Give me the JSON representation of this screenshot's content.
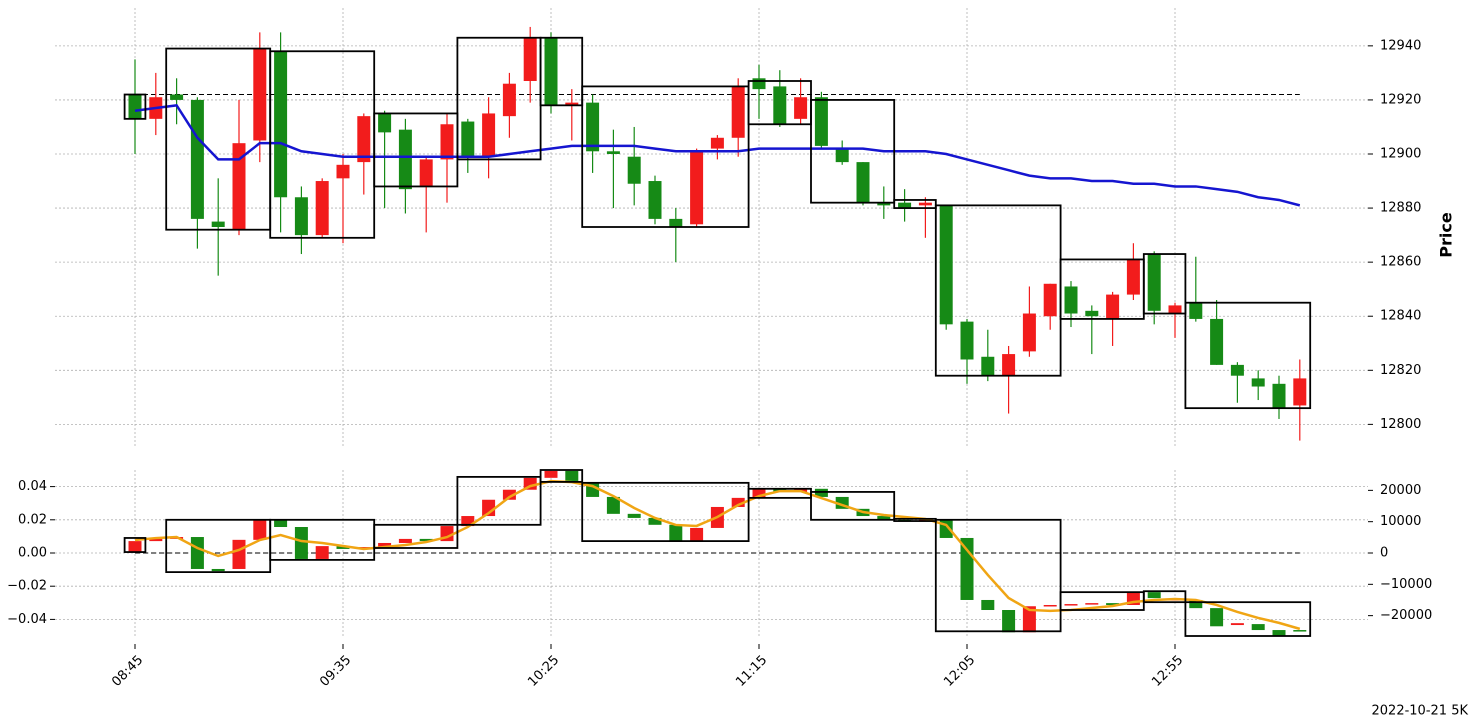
{
  "chart_data": [
    {
      "type": "candlestick",
      "ylabel": "Price",
      "ylim": [
        12792,
        12954
      ],
      "yticks": [
        12800,
        12820,
        12840,
        12860,
        12880,
        12900,
        12920,
        12940
      ],
      "grid": true,
      "up_color": "#f21c1c",
      "down_color": "#168a16",
      "open": [
        12922,
        12913,
        12922,
        12920,
        12875,
        12872,
        12905,
        12938,
        12884,
        12870,
        12891,
        12897,
        12915,
        12909,
        12888,
        12898,
        12912,
        12899,
        12914,
        12927,
        12943,
        12918,
        12919,
        12901,
        12899,
        12890,
        12876,
        12874,
        12902,
        12906,
        12928,
        12925,
        12913,
        12921,
        12902,
        12897,
        12882,
        12882,
        12881,
        12881,
        12838,
        12825,
        12818,
        12827,
        12840,
        12851,
        12842,
        12839,
        12848,
        12863,
        12841,
        12845,
        12839,
        12822,
        12817,
        12815,
        12807
      ],
      "high": [
        12935,
        12930,
        12928,
        12921,
        12891,
        12920,
        12945,
        12945,
        12888,
        12891,
        12900,
        12915,
        12916,
        12913,
        12899,
        12915,
        12913,
        12921,
        12930,
        12947,
        12945,
        12924,
        12922,
        12909,
        12910,
        12892,
        12880,
        12902,
        12907,
        12928,
        12933,
        12931,
        12928,
        12923,
        12905,
        12897,
        12888,
        12887,
        12884,
        12881,
        12839,
        12835,
        12829,
        12851,
        12852,
        12853,
        12844,
        12849,
        12867,
        12864,
        12845,
        12862,
        12846,
        12823,
        12820,
        12818,
        12824
      ],
      "low": [
        12900,
        12907,
        12911,
        12865,
        12855,
        12870,
        12897,
        12871,
        12863,
        12869,
        12867,
        12885,
        12880,
        12878,
        12871,
        12882,
        12893,
        12891,
        12906,
        12919,
        12915,
        12905,
        12893,
        12880,
        12881,
        12874,
        12860,
        12873,
        12898,
        12899,
        12913,
        12910,
        12911,
        12902,
        12896,
        12881,
        12876,
        12875,
        12869,
        12835,
        12815,
        12816,
        12804,
        12825,
        12835,
        12836,
        12826,
        12829,
        12846,
        12837,
        12832,
        12838,
        12822,
        12808,
        12809,
        12802,
        12794
      ],
      "close": [
        12913,
        12921,
        12920,
        12876,
        12873,
        12904,
        12939,
        12884,
        12870,
        12890,
        12896,
        12914,
        12908,
        12887,
        12898,
        12911,
        12899,
        12915,
        12926,
        12943,
        12918,
        12919,
        12901,
        12900,
        12889,
        12876,
        12873,
        12901,
        12906,
        12925,
        12924,
        12911,
        12921,
        12903,
        12897,
        12882,
        12881,
        12880,
        12882,
        12837,
        12824,
        12818,
        12826,
        12841,
        12852,
        12841,
        12840,
        12848,
        12861,
        12842,
        12844,
        12839,
        12822,
        12818,
        12814,
        12806,
        12817
      ],
      "line": {
        "color": "#1515d0",
        "values": [
          12916,
          12917,
          12918,
          12906,
          12898,
          12898,
          12904,
          12904,
          12901,
          12900,
          12899,
          12899,
          12899,
          12899,
          12899,
          12899,
          12899,
          12899,
          12900,
          12901,
          12902,
          12903,
          12903,
          12903,
          12903,
          12902,
          12901,
          12901,
          12901,
          12901,
          12902,
          12902,
          12902,
          12902,
          12902,
          12902,
          12901,
          12901,
          12901,
          12900,
          12898,
          12896,
          12894,
          12892,
          12891,
          12891,
          12890,
          12890,
          12889,
          12889,
          12888,
          12888,
          12887,
          12886,
          12884,
          12883,
          12881
        ]
      },
      "hline": 12922,
      "boxes": [
        {
          "start": 0,
          "end": 0,
          "low": 12913,
          "high": 12922
        },
        {
          "start": 2,
          "end": 6,
          "low": 12872,
          "high": 12939
        },
        {
          "start": 7,
          "end": 11,
          "low": 12869,
          "high": 12938
        },
        {
          "start": 12,
          "end": 15,
          "low": 12888,
          "high": 12915
        },
        {
          "start": 16,
          "end": 19,
          "low": 12898,
          "high": 12943
        },
        {
          "start": 20,
          "end": 21,
          "low": 12918,
          "high": 12943
        },
        {
          "start": 22,
          "end": 29,
          "low": 12873,
          "high": 12925
        },
        {
          "start": 30,
          "end": 32,
          "low": 12911,
          "high": 12927
        },
        {
          "start": 33,
          "end": 36,
          "low": 12882,
          "high": 12920
        },
        {
          "start": 37,
          "end": 38,
          "low": 12880,
          "high": 12883
        },
        {
          "start": 39,
          "end": 44,
          "low": 12818,
          "high": 12881
        },
        {
          "start": 45,
          "end": 48,
          "low": 12839,
          "high": 12861
        },
        {
          "start": 49,
          "end": 50,
          "low": 12841,
          "high": 12863
        },
        {
          "start": 51,
          "end": 56,
          "low": 12806,
          "high": 12845
        }
      ]
    },
    {
      "type": "candlestick",
      "footer": "2022-10-21 5K",
      "categories": [
        "08:45",
        null,
        null,
        null,
        null,
        null,
        null,
        null,
        null,
        null,
        "09:35",
        null,
        null,
        null,
        null,
        null,
        null,
        null,
        null,
        null,
        "10:25",
        null,
        null,
        null,
        null,
        null,
        null,
        null,
        null,
        null,
        "11:15",
        null,
        null,
        null,
        null,
        null,
        null,
        null,
        null,
        null,
        "12:05",
        null,
        null,
        null,
        null,
        null,
        null,
        null,
        null,
        null,
        "12:55",
        null,
        null,
        null,
        null,
        null,
        null
      ],
      "ylim": [
        -0.05,
        0.05
      ],
      "yticks": [
        0.04,
        0.02,
        {
          "value": 0,
          "label": "0.00"
        },
        {
          "value": -0.02,
          "label": "−0.02"
        },
        {
          "value": -0.04,
          "label": "−0.04"
        }
      ],
      "y2lim": [
        -26500,
        26500
      ],
      "y2ticks": [
        20000,
        10000,
        0,
        {
          "value": -10000,
          "label": "−10000"
        },
        {
          "value": -20000,
          "label": "−20000"
        }
      ],
      "grid": true,
      "up_color": "#f21c1c",
      "down_color": "#168a16",
      "bodies": {
        "axis": "y2",
        "open": [
          300,
          3800,
          4500,
          5100,
          -5100,
          -5100,
          4200,
          10600,
          8300,
          -1900,
          2200,
          1300,
          1900,
          3200,
          4500,
          3800,
          8600,
          11800,
          17000,
          20200,
          24000,
          26200,
          22400,
          17900,
          12500,
          11200,
          9000,
          3800,
          8000,
          14700,
          17600,
          20500,
          19500,
          20500,
          17900,
          14100,
          11800,
          10600,
          10200,
          10600,
          4800,
          -15000,
          -18200,
          -25300,
          -17000,
          -16600,
          -16300,
          -16000,
          -16600,
          -12500,
          -15000,
          -15000,
          -17600,
          -23000,
          -22700,
          -24600,
          -24600
        ],
        "close": [
          3800,
          4500,
          5100,
          -5100,
          -5800,
          4200,
          10600,
          8300,
          -1900,
          2200,
          1300,
          1900,
          3200,
          4500,
          3800,
          8600,
          11800,
          17000,
          20200,
          24000,
          26200,
          23000,
          17900,
          12500,
          11200,
          9000,
          3800,
          8000,
          14700,
          17600,
          20500,
          19500,
          20500,
          17900,
          14100,
          11800,
          10600,
          10200,
          10600,
          4800,
          -15000,
          -18200,
          -25300,
          -17000,
          -16600,
          -16300,
          -16000,
          -16600,
          -12500,
          -14400,
          -14700,
          -17600,
          -23400,
          -22400,
          -24600,
          -26500,
          -25000
        ]
      },
      "line": {
        "color": "#f0a514",
        "values": [
          0.0078,
          0.009,
          0.0096,
          0.003,
          -0.0018,
          0.0018,
          0.0078,
          0.0108,
          0.0072,
          0.006,
          0.0042,
          0.0024,
          0.0036,
          0.0048,
          0.0066,
          0.0096,
          0.0157,
          0.024,
          0.0337,
          0.0403,
          0.0433,
          0.0427,
          0.0403,
          0.0343,
          0.0271,
          0.0211,
          0.0169,
          0.0163,
          0.0217,
          0.0289,
          0.0343,
          0.0373,
          0.0373,
          0.0331,
          0.0289,
          0.0247,
          0.0229,
          0.0217,
          0.0205,
          0.0169,
          0.0018,
          -0.0132,
          -0.0271,
          -0.0343,
          -0.0349,
          -0.0343,
          -0.0331,
          -0.0319,
          -0.0295,
          -0.0283,
          -0.0277,
          -0.0283,
          -0.0313,
          -0.0355,
          -0.0391,
          -0.0421,
          -0.0457
        ]
      },
      "hline": 0,
      "boxes": [
        {
          "start": 0,
          "end": 0,
          "low": 300,
          "high": 4800
        },
        {
          "start": 2,
          "end": 6,
          "low": -6100,
          "high": 10600
        },
        {
          "start": 7,
          "end": 11,
          "low": -2200,
          "high": 10600
        },
        {
          "start": 12,
          "end": 15,
          "low": 1600,
          "high": 9000
        },
        {
          "start": 16,
          "end": 19,
          "low": 9000,
          "high": 24300
        },
        {
          "start": 20,
          "end": 21,
          "low": 22700,
          "high": 26500
        },
        {
          "start": 22,
          "end": 29,
          "low": 3800,
          "high": 22400
        },
        {
          "start": 30,
          "end": 32,
          "low": 17600,
          "high": 20500
        },
        {
          "start": 33,
          "end": 36,
          "low": 10600,
          "high": 19500
        },
        {
          "start": 37,
          "end": 38,
          "low": 10200,
          "high": 10900
        },
        {
          "start": 39,
          "end": 44,
          "low": -25000,
          "high": 10600
        },
        {
          "start": 45,
          "end": 48,
          "low": -18200,
          "high": -12500
        },
        {
          "start": 49,
          "end": 50,
          "low": -15700,
          "high": -12200
        },
        {
          "start": 51,
          "end": 56,
          "low": -26500,
          "high": -15700
        }
      ]
    }
  ]
}
